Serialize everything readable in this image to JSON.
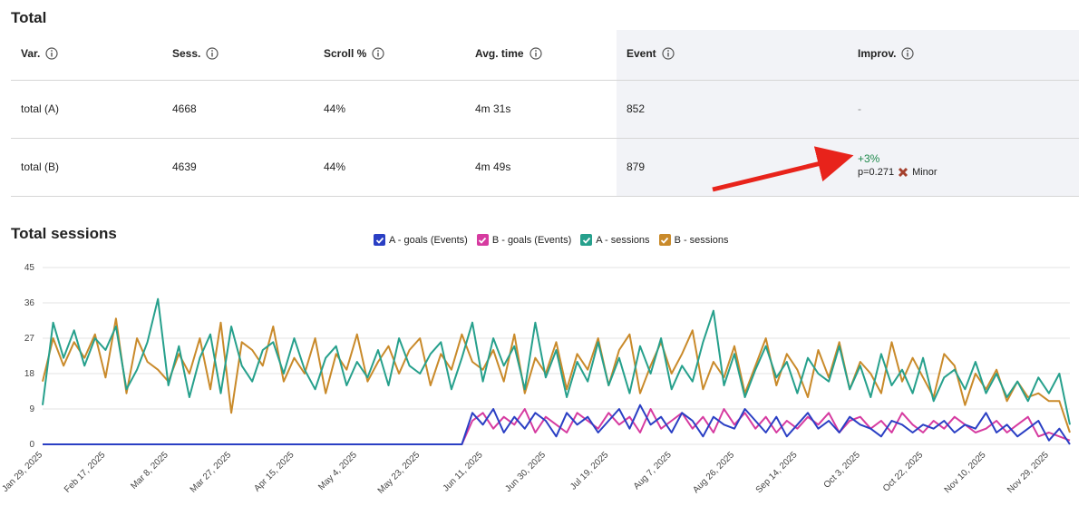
{
  "table": {
    "title": "Total",
    "columns": [
      "Var.",
      "Sess.",
      "Scroll %",
      "Avg. time",
      "Event",
      "Improv."
    ],
    "rows": [
      [
        "total (A)",
        "4668",
        "44%",
        "4m 31s",
        "852",
        "-"
      ],
      [
        "total (B)",
        "4639",
        "44%",
        "4m 49s",
        "879",
        {
          "change": "+3%",
          "p": "p=0.271",
          "verdict": "Minor"
        }
      ]
    ]
  },
  "chart_data": {
    "type": "line",
    "title": "Total sessions",
    "categories": [
      "Jan 29, 2025",
      null,
      null,
      null,
      null,
      null,
      "Feb 17, 2025",
      null,
      null,
      null,
      null,
      null,
      "Mar 8, 2025",
      null,
      null,
      null,
      null,
      null,
      "Mar 27, 2025",
      null,
      null,
      null,
      null,
      null,
      "Apr 15, 2025",
      null,
      null,
      null,
      null,
      null,
      "May 4, 2025",
      null,
      null,
      null,
      null,
      null,
      "May 23, 2025",
      null,
      null,
      null,
      null,
      null,
      "Jun 11, 2025",
      null,
      null,
      null,
      null,
      null,
      "Jun 30, 2025",
      null,
      null,
      null,
      null,
      null,
      "Jul 19, 2025",
      null,
      null,
      null,
      null,
      null,
      "Aug 7, 2025",
      null,
      null,
      null,
      null,
      null,
      "Aug 26, 2025",
      null,
      null,
      null,
      null,
      null,
      "Sep 14, 2025",
      null,
      null,
      null,
      null,
      null,
      "Oct 3, 2025",
      null,
      null,
      null,
      null,
      null,
      "Oct 22, 2025",
      null,
      null,
      null,
      null,
      null,
      "Nov 10, 2025",
      null,
      null,
      null,
      null,
      null,
      "Nov 29, 2025",
      null,
      null
    ],
    "ylim": [
      0,
      45
    ],
    "yticks": [
      0,
      9,
      18,
      27,
      36,
      45
    ],
    "grid": true,
    "series": [
      {
        "name": "A - goals (Events)",
        "color": "#2a3fc4",
        "values": [
          0,
          0,
          0,
          0,
          0,
          0,
          0,
          0,
          0,
          0,
          0,
          0,
          0,
          0,
          0,
          0,
          0,
          0,
          0,
          0,
          0,
          0,
          0,
          0,
          0,
          0,
          0,
          0,
          0,
          0,
          0,
          0,
          0,
          0,
          0,
          0,
          0,
          0,
          0,
          0,
          0,
          8,
          5,
          9,
          3,
          7,
          4,
          8,
          6,
          2,
          8,
          5,
          7,
          3,
          6,
          9,
          4,
          10,
          5,
          7,
          3,
          8,
          6,
          2,
          7,
          5,
          4,
          9,
          6,
          3,
          7,
          2,
          5,
          8,
          4,
          6,
          3,
          7,
          5,
          4,
          2,
          6,
          5,
          3,
          5,
          4,
          6,
          3,
          5,
          4,
          8,
          3,
          5,
          2,
          4,
          6,
          1,
          4,
          0
        ]
      },
      {
        "name": "B - goals (Events)",
        "color": "#d63ba0",
        "values": [
          0,
          0,
          0,
          0,
          0,
          0,
          0,
          0,
          0,
          0,
          0,
          0,
          0,
          0,
          0,
          0,
          0,
          0,
          0,
          0,
          0,
          0,
          0,
          0,
          0,
          0,
          0,
          0,
          0,
          0,
          0,
          0,
          0,
          0,
          0,
          0,
          0,
          0,
          0,
          0,
          0,
          6,
          8,
          4,
          7,
          5,
          9,
          3,
          7,
          5,
          3,
          8,
          6,
          4,
          8,
          5,
          7,
          3,
          9,
          4,
          6,
          8,
          4,
          7,
          3,
          9,
          5,
          8,
          4,
          7,
          3,
          6,
          4,
          7,
          5,
          8,
          3,
          6,
          7,
          4,
          6,
          3,
          8,
          5,
          3,
          6,
          4,
          7,
          5,
          3,
          4,
          6,
          3,
          5,
          7,
          2,
          3,
          2,
          1
        ]
      },
      {
        "name": "A - sessions",
        "color": "#26a08c",
        "values": [
          10,
          31,
          22,
          29,
          20,
          27,
          24,
          30,
          14,
          19,
          26,
          37,
          15,
          25,
          12,
          22,
          28,
          13,
          30,
          20,
          16,
          24,
          26,
          18,
          27,
          19,
          14,
          22,
          25,
          15,
          21,
          17,
          24,
          15,
          27,
          20,
          18,
          23,
          26,
          14,
          22,
          31,
          16,
          27,
          20,
          25,
          14,
          31,
          17,
          24,
          12,
          21,
          16,
          26,
          15,
          22,
          13,
          25,
          18,
          27,
          14,
          20,
          16,
          26,
          34,
          15,
          23,
          12,
          19,
          25,
          17,
          21,
          13,
          22,
          18,
          16,
          25,
          14,
          20,
          12,
          23,
          15,
          19,
          13,
          22,
          11,
          17,
          19,
          14,
          21,
          13,
          18,
          12,
          16,
          11,
          17,
          13,
          18,
          5
        ]
      },
      {
        "name": "B - sessions",
        "color": "#c98a2a",
        "values": [
          16,
          27,
          20,
          26,
          22,
          28,
          17,
          32,
          13,
          27,
          21,
          19,
          16,
          23,
          18,
          27,
          14,
          31,
          8,
          26,
          24,
          20,
          30,
          16,
          22,
          18,
          27,
          13,
          23,
          19,
          28,
          16,
          21,
          25,
          18,
          24,
          27,
          15,
          23,
          19,
          28,
          21,
          19,
          24,
          16,
          28,
          13,
          22,
          18,
          26,
          14,
          23,
          19,
          27,
          15,
          24,
          28,
          13,
          20,
          26,
          18,
          23,
          29,
          14,
          21,
          17,
          25,
          13,
          20,
          27,
          15,
          23,
          19,
          12,
          24,
          17,
          26,
          14,
          21,
          18,
          13,
          26,
          16,
          22,
          17,
          12,
          23,
          20,
          10,
          18,
          14,
          19,
          11,
          16,
          12,
          13,
          11,
          11,
          3
        ]
      }
    ]
  }
}
